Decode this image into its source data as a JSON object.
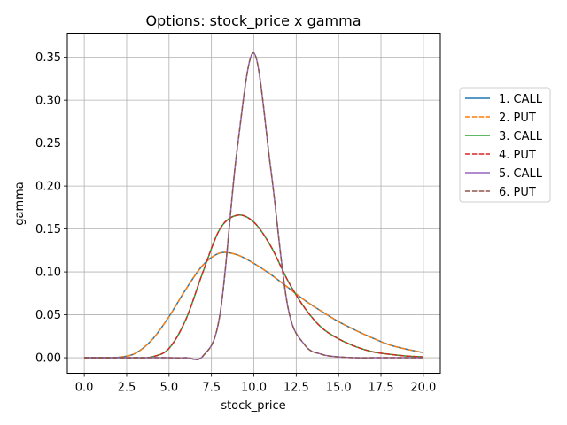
{
  "chart_data": {
    "type": "line",
    "title": "Options: stock_price x gamma",
    "xlabel": "stock_price",
    "ylabel": "gamma",
    "xlim": [
      -1.0,
      21.0
    ],
    "ylim": [
      -0.018,
      0.378
    ],
    "xticks": [
      0.0,
      2.5,
      5.0,
      7.5,
      10.0,
      12.5,
      15.0,
      17.5,
      20.0
    ],
    "xtick_labels": [
      "0.0",
      "2.5",
      "5.0",
      "7.5",
      "10.0",
      "12.5",
      "15.0",
      "17.5",
      "20.0"
    ],
    "yticks": [
      0.0,
      0.05,
      0.1,
      0.15,
      0.2,
      0.25,
      0.3,
      0.35
    ],
    "ytick_labels": [
      "0.00",
      "0.05",
      "0.10",
      "0.15",
      "0.20",
      "0.25",
      "0.30",
      "0.35"
    ],
    "grid": true,
    "legend_position": "right",
    "x": [
      0,
      1,
      2,
      3,
      4,
      5,
      6,
      7,
      8,
      9,
      10,
      11,
      12,
      13,
      14,
      15,
      16,
      17,
      18,
      19,
      20
    ],
    "series": [
      {
        "name": "1. CALL",
        "color": "#1f77b4",
        "dash": "solid",
        "values": [
          0,
          0,
          0.0005,
          0.005,
          0.021,
          0.048,
          0.08,
          0.108,
          0.122,
          0.12,
          0.11,
          0.097,
          0.082,
          0.067,
          0.054,
          0.042,
          0.032,
          0.023,
          0.015,
          0.01,
          0.006
        ]
      },
      {
        "name": "2. PUT",
        "color": "#ff7f0e",
        "dash": "dashed",
        "values": [
          0,
          0,
          0.0005,
          0.005,
          0.021,
          0.048,
          0.08,
          0.108,
          0.122,
          0.12,
          0.11,
          0.097,
          0.082,
          0.067,
          0.054,
          0.042,
          0.032,
          0.023,
          0.015,
          0.01,
          0.006
        ]
      },
      {
        "name": "3. CALL",
        "color": "#2ca02c",
        "dash": "solid",
        "values": [
          0,
          0,
          0,
          0,
          0.001,
          0.011,
          0.045,
          0.1,
          0.15,
          0.166,
          0.158,
          0.13,
          0.09,
          0.058,
          0.035,
          0.022,
          0.013,
          0.007,
          0.004,
          0.002,
          0.001
        ]
      },
      {
        "name": "4. PUT",
        "color": "#d62728",
        "dash": "dashed",
        "values": [
          0,
          0,
          0,
          0,
          0.001,
          0.011,
          0.045,
          0.1,
          0.15,
          0.166,
          0.158,
          0.13,
          0.09,
          0.058,
          0.035,
          0.022,
          0.013,
          0.007,
          0.004,
          0.002,
          0.001
        ]
      },
      {
        "name": "5. CALL",
        "color": "#9467bd",
        "dash": "solid",
        "values": [
          0,
          0,
          0,
          0,
          0,
          0,
          0,
          0.002,
          0.05,
          0.24,
          0.355,
          0.22,
          0.06,
          0.015,
          0.004,
          0.001,
          0,
          0,
          0,
          0,
          0
        ]
      },
      {
        "name": "6. PUT",
        "color": "#8c564b",
        "dash": "dashed",
        "values": [
          0,
          0,
          0,
          0,
          0,
          0,
          0,
          0.002,
          0.05,
          0.24,
          0.355,
          0.22,
          0.06,
          0.015,
          0.004,
          0.001,
          0,
          0,
          0,
          0,
          0
        ]
      }
    ]
  }
}
